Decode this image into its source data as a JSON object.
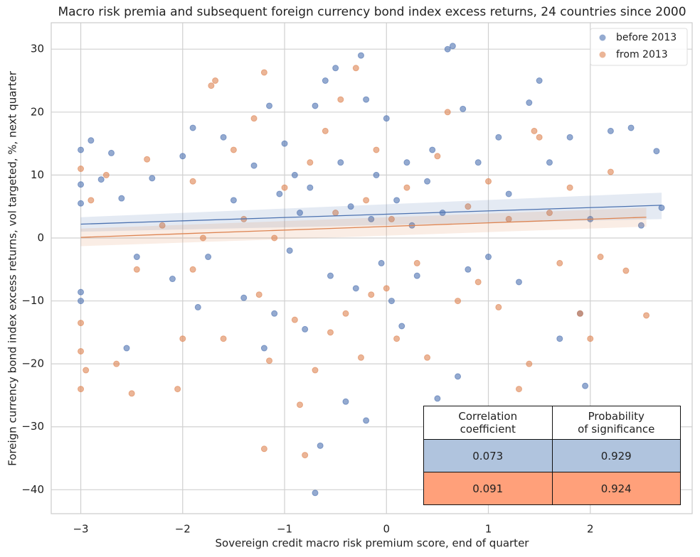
{
  "chart_data": {
    "type": "scatter",
    "title": "Macro risk premia and subsequent foreign currency bond index excess returns, 24 countries since 2000",
    "x_label": "Sovereign credit macro risk premium score, end of quarter",
    "y_label": "Foreign currency bond index excess returns, vol targeted, %, next quarter",
    "xlim": [
      -3.29,
      3.0
    ],
    "ylim": [
      -43.8,
      34.2
    ],
    "xticks": [
      {
        "value": -3,
        "label": "−3"
      },
      {
        "value": -2,
        "label": "−2"
      },
      {
        "value": -1,
        "label": "−1"
      },
      0,
      1,
      2
    ],
    "yticks": [
      {
        "value": -40,
        "label": "−40"
      },
      {
        "value": -30,
        "label": "−30"
      },
      {
        "value": -20,
        "label": "−20"
      },
      {
        "value": -10,
        "label": "−10"
      },
      0,
      10,
      20,
      30
    ],
    "grid": true,
    "legend": "upper right",
    "series": [
      {
        "name": "before 2013",
        "color": "#4c72b0",
        "x": [
          -3,
          -3,
          -3,
          -3,
          -3,
          -2.9,
          -2.8,
          -2.7,
          -2.6,
          -2.55,
          -2.45,
          -2.3,
          -2.1,
          -2.0,
          -1.9,
          -1.85,
          -1.75,
          -1.6,
          -1.5,
          -1.4,
          -1.3,
          -1.2,
          -1.15,
          -1.1,
          -1.05,
          -1.0,
          -0.95,
          -0.9,
          -0.85,
          -0.8,
          -0.75,
          -0.7,
          -0.7,
          -0.65,
          -0.6,
          -0.55,
          -0.5,
          -0.45,
          -0.4,
          -0.35,
          -0.3,
          -0.25,
          -0.2,
          -0.2,
          -0.15,
          -0.1,
          -0.05,
          0,
          0.05,
          0.1,
          0.15,
          0.2,
          0.25,
          0.3,
          0.4,
          0.45,
          0.5,
          0.55,
          0.6,
          0.65,
          0.7,
          0.75,
          0.8,
          0.9,
          1.0,
          1.1,
          1.2,
          1.3,
          1.4,
          1.5,
          1.6,
          1.7,
          1.8,
          1.9,
          1.95,
          2.0,
          2.2,
          2.4,
          2.5,
          2.65,
          2.7
        ],
        "y": [
          14,
          8.5,
          5.5,
          -8.6,
          -10,
          15.5,
          9.3,
          13.5,
          6.3,
          -17.5,
          -3,
          9.5,
          -6.5,
          13,
          17.5,
          -11,
          -3,
          16,
          6,
          -9.5,
          11.5,
          -17.5,
          21,
          -12,
          7,
          15,
          -2,
          10,
          4,
          -14.5,
          8,
          -40.5,
          21,
          -33,
          25,
          -6,
          27,
          12,
          -26,
          5,
          -8,
          29,
          22,
          -29,
          3,
          10,
          -4,
          19,
          -10,
          6,
          -14,
          12,
          2,
          -6,
          9,
          14,
          -25.5,
          4,
          30,
          30.5,
          -22,
          20.5,
          -5,
          12,
          -3,
          16,
          7,
          -7,
          21.5,
          25,
          12,
          -16,
          16,
          -12,
          -23.5,
          3,
          17,
          17.5,
          2,
          13.8,
          4.8
        ],
        "fit": {
          "x": [
            -3,
            2.7
          ],
          "y": [
            2.2,
            5.2
          ],
          "lower": [
            1.0,
            3.0
          ],
          "upper": [
            3.3,
            7.2
          ]
        }
      },
      {
        "name": "from 2013",
        "color": "#dd8452",
        "x": [
          -3,
          -3,
          -3,
          -3,
          -2.95,
          -2.9,
          -2.75,
          -2.65,
          -2.5,
          -2.45,
          -2.35,
          -2.2,
          -2.05,
          -2.0,
          -1.9,
          -1.8,
          -1.72,
          -1.68,
          -1.6,
          -1.5,
          -1.4,
          -1.3,
          -1.25,
          -1.2,
          -1.2,
          -1.15,
          -1.1,
          -1.0,
          -0.9,
          -0.85,
          -0.8,
          -0.75,
          -0.7,
          -0.6,
          -0.55,
          -0.5,
          -0.45,
          -0.4,
          -0.3,
          -0.25,
          -0.2,
          -0.1,
          0,
          0.05,
          0.1,
          0.2,
          0.3,
          0.4,
          0.5,
          0.6,
          0.7,
          0.8,
          0.9,
          1.0,
          1.1,
          1.2,
          1.3,
          1.4,
          1.5,
          1.6,
          1.7,
          1.8,
          1.9,
          2.0,
          2.1,
          2.2,
          2.35,
          2.55,
          1.45,
          -0.15,
          -1.9
        ],
        "y": [
          11,
          -24,
          -18,
          -13.5,
          -21,
          6,
          10,
          -20,
          -24.7,
          -5,
          12.5,
          2,
          -24,
          -16,
          9,
          0,
          24.2,
          25,
          -16,
          14,
          3,
          19,
          -9,
          26.3,
          -33.5,
          -19.5,
          0,
          8,
          -13,
          -26.5,
          -34.5,
          12,
          -21,
          17,
          -15,
          4,
          22,
          -12,
          27,
          -19,
          6,
          14,
          -8,
          3,
          -16,
          8,
          -4,
          -19,
          13,
          20,
          -10,
          5,
          -7,
          9,
          -11,
          3,
          -24,
          -20,
          16,
          4,
          -4,
          8,
          -12,
          -16,
          -3,
          10.5,
          -5.2,
          -12.3,
          17,
          -9,
          -5
        ],
        "fit": {
          "x": [
            -3,
            2.55
          ],
          "y": [
            0.1,
            3.3
          ],
          "lower": [
            -1.3,
            1.8
          ],
          "upper": [
            1.5,
            4.8
          ]
        }
      }
    ]
  },
  "table": {
    "header": [
      "Correlation\ncoefficient",
      "Probability\nof significance"
    ],
    "rows": [
      [
        0.073,
        0.929
      ],
      [
        0.091,
        0.924
      ]
    ],
    "row_colors": [
      "#b0c4de",
      "#ffa07a"
    ]
  }
}
